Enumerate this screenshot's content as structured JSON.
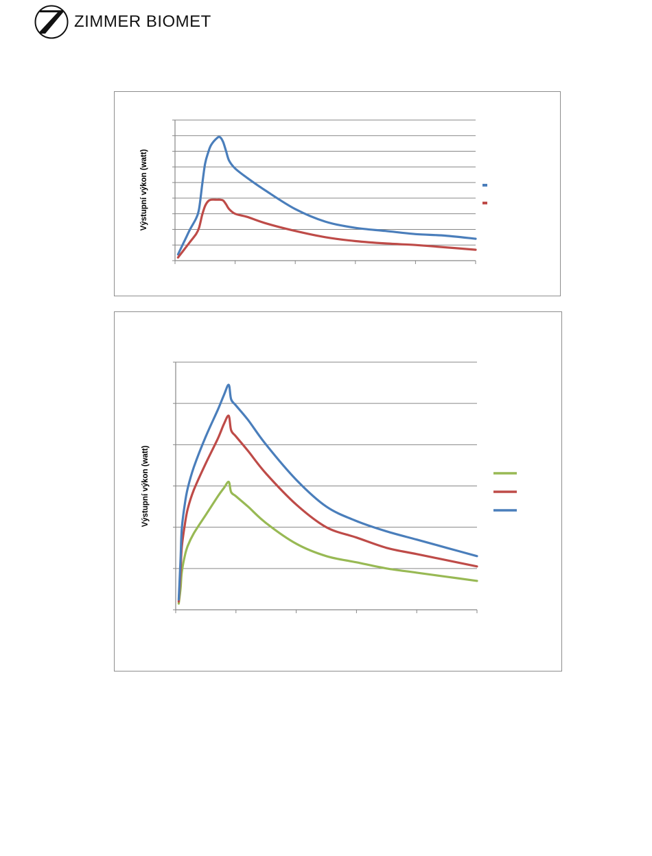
{
  "header": {
    "brand": "ZIMMER BIOMET"
  },
  "colors": {
    "blue": "#4a7ebb",
    "red": "#be4b48",
    "green": "#98b954",
    "grid": "#868686",
    "axis": "#868686"
  },
  "chart_data": [
    {
      "type": "line",
      "title": "",
      "xlabel": "",
      "ylabel": "Výstupní výkon (watt)",
      "grid": true,
      "legend": "right",
      "xlim": [
        0,
        5
      ],
      "ylim": [
        0,
        9
      ],
      "series": [
        {
          "color": "#4a7ebb",
          "x": [
            0.05,
            0.15,
            0.25,
            0.35,
            0.4,
            0.45,
            0.5,
            0.55,
            0.6,
            0.7,
            0.75,
            0.8,
            0.85,
            0.9,
            1.0,
            1.2,
            1.5,
            2.0,
            2.5,
            3.0,
            3.5,
            4.0,
            4.5,
            5.0
          ],
          "y": [
            0.4,
            1.2,
            2.0,
            2.7,
            3.3,
            4.8,
            6.2,
            6.9,
            7.4,
            7.85,
            7.9,
            7.6,
            7.0,
            6.4,
            5.9,
            5.3,
            4.5,
            3.3,
            2.5,
            2.1,
            1.9,
            1.7,
            1.6,
            1.4
          ]
        },
        {
          "color": "#be4b48",
          "x": [
            0.05,
            0.15,
            0.25,
            0.35,
            0.4,
            0.45,
            0.5,
            0.55,
            0.6,
            0.7,
            0.75,
            0.8,
            0.85,
            0.9,
            1.0,
            1.2,
            1.5,
            2.0,
            2.5,
            3.0,
            3.5,
            4.0,
            4.5,
            5.0
          ],
          "y": [
            0.2,
            0.7,
            1.2,
            1.7,
            2.1,
            2.9,
            3.5,
            3.8,
            3.9,
            3.9,
            3.9,
            3.85,
            3.6,
            3.3,
            3.0,
            2.8,
            2.4,
            1.9,
            1.5,
            1.25,
            1.1,
            1.0,
            0.85,
            0.7
          ]
        }
      ]
    },
    {
      "type": "line",
      "title": "",
      "xlabel": "",
      "ylabel": "Výstupní výkon (watt)",
      "grid": true,
      "legend": "right",
      "xlim": [
        0,
        5
      ],
      "ylim": [
        0,
        6
      ],
      "series": [
        {
          "color": "#98b954",
          "x": [
            0.05,
            0.08,
            0.1,
            0.15,
            0.2,
            0.3,
            0.5,
            0.7,
            0.8,
            0.88,
            0.92,
            1.0,
            1.2,
            1.5,
            2.0,
            2.5,
            3.0,
            3.5,
            4.0,
            4.5,
            5.0
          ],
          "y": [
            0.15,
            0.5,
            0.9,
            1.3,
            1.55,
            1.85,
            2.3,
            2.75,
            2.95,
            3.1,
            2.85,
            2.75,
            2.5,
            2.1,
            1.6,
            1.3,
            1.15,
            1.0,
            0.9,
            0.8,
            0.7
          ]
        },
        {
          "color": "#be4b48",
          "x": [
            0.05,
            0.08,
            0.1,
            0.15,
            0.2,
            0.3,
            0.5,
            0.7,
            0.8,
            0.88,
            0.92,
            1.0,
            1.2,
            1.5,
            2.0,
            2.5,
            3.0,
            3.5,
            4.0,
            4.5,
            5.0
          ],
          "y": [
            0.2,
            0.9,
            1.5,
            2.05,
            2.45,
            2.9,
            3.55,
            4.15,
            4.5,
            4.7,
            4.35,
            4.2,
            3.85,
            3.3,
            2.55,
            2.0,
            1.75,
            1.5,
            1.35,
            1.2,
            1.05
          ]
        },
        {
          "color": "#4a7ebb",
          "x": [
            0.05,
            0.08,
            0.1,
            0.15,
            0.2,
            0.3,
            0.5,
            0.7,
            0.8,
            0.88,
            0.92,
            1.0,
            1.2,
            1.5,
            2.0,
            2.5,
            3.0,
            3.5,
            4.0,
            4.5,
            5.0
          ],
          "y": [
            0.25,
            1.2,
            1.95,
            2.55,
            2.95,
            3.45,
            4.2,
            4.85,
            5.2,
            5.45,
            5.1,
            4.95,
            4.6,
            4.0,
            3.15,
            2.5,
            2.15,
            1.9,
            1.7,
            1.5,
            1.3
          ]
        }
      ]
    }
  ]
}
